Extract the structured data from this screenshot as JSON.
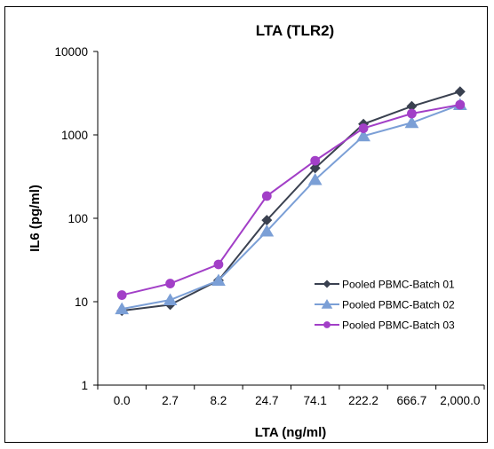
{
  "chart_data": {
    "type": "line",
    "title": "LTA (TLR2)",
    "xlabel": "LTA (ng/ml)",
    "ylabel": "IL6 (pg/ml)",
    "categories": [
      "0.0",
      "2.7",
      "8.2",
      "24.7",
      "74.1",
      "222.2",
      "666.7",
      "2,000.0"
    ],
    "y_scale": "log",
    "ylim": [
      1,
      10000
    ],
    "y_ticks": [
      1,
      10,
      100,
      1000,
      10000
    ],
    "y_tick_labels": [
      "1",
      "10",
      "100",
      "1000",
      "10000"
    ],
    "grid": false,
    "legend_position": "right-center",
    "series": [
      {
        "name": "Pooled PBMC-Batch 01",
        "color": "#3a4150",
        "marker": "diamond",
        "values": [
          7.8,
          9.2,
          18,
          95,
          400,
          1350,
          2200,
          3300
        ]
      },
      {
        "name": "Pooled PBMC-Batch 02",
        "color": "#7b9fd6",
        "marker": "triangle",
        "values": [
          8.2,
          10.5,
          18,
          70,
          290,
          970,
          1400,
          2300
        ]
      },
      {
        "name": "Pooled PBMC-Batch 03",
        "color": "#a23fc7",
        "marker": "circle",
        "values": [
          12,
          16.5,
          28,
          185,
          490,
          1200,
          1800,
          2300
        ]
      }
    ]
  }
}
